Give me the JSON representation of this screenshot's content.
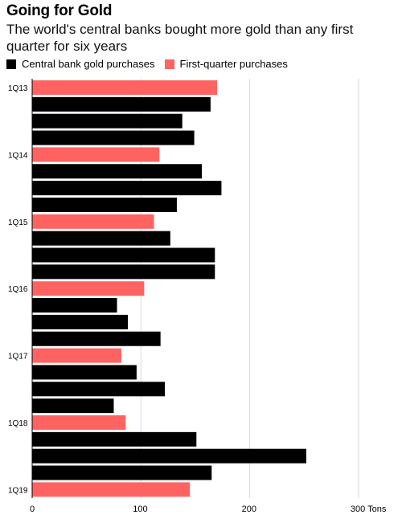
{
  "chart_data": {
    "type": "bar",
    "orientation": "horizontal",
    "title": "Going for Gold",
    "subtitle": "The world's central banks bought more gold than any first quarter for six years",
    "xlabel": "",
    "ylabel": "",
    "xlim": [
      0,
      300
    ],
    "x_ticks": [
      0,
      100,
      200,
      300
    ],
    "x_tick_labels": [
      "0",
      "100",
      "200",
      "300 Tons"
    ],
    "grid": true,
    "legend_position": "top-left",
    "series": [
      {
        "name": "Central bank gold purchases",
        "color": "#000000"
      },
      {
        "name": "First-quarter purchases",
        "color": "#ff6361"
      }
    ],
    "categories": [
      "1Q13",
      "2Q13",
      "3Q13",
      "4Q13",
      "1Q14",
      "2Q14",
      "3Q14",
      "4Q14",
      "1Q15",
      "2Q15",
      "3Q15",
      "4Q15",
      "1Q16",
      "2Q16",
      "3Q16",
      "4Q16",
      "1Q17",
      "2Q17",
      "3Q17",
      "4Q17",
      "1Q18",
      "2Q18",
      "3Q18",
      "4Q18",
      "1Q19"
    ],
    "category_labels": [
      "1Q13",
      "",
      "",
      "",
      "1Q14",
      "",
      "",
      "",
      "1Q15",
      "",
      "",
      "",
      "1Q16",
      "",
      "",
      "",
      "1Q17",
      "",
      "",
      "",
      "1Q18",
      "",
      "",
      "",
      "1Q19"
    ],
    "values": [
      170,
      164,
      138,
      149,
      117,
      156,
      174,
      133,
      112,
      127,
      168,
      168,
      103,
      78,
      88,
      118,
      82,
      96,
      122,
      75,
      86,
      151,
      252,
      165,
      145
    ],
    "first_quarter": [
      true,
      false,
      false,
      false,
      true,
      false,
      false,
      false,
      true,
      false,
      false,
      false,
      true,
      false,
      false,
      false,
      true,
      false,
      false,
      false,
      true,
      false,
      false,
      false,
      true
    ]
  }
}
